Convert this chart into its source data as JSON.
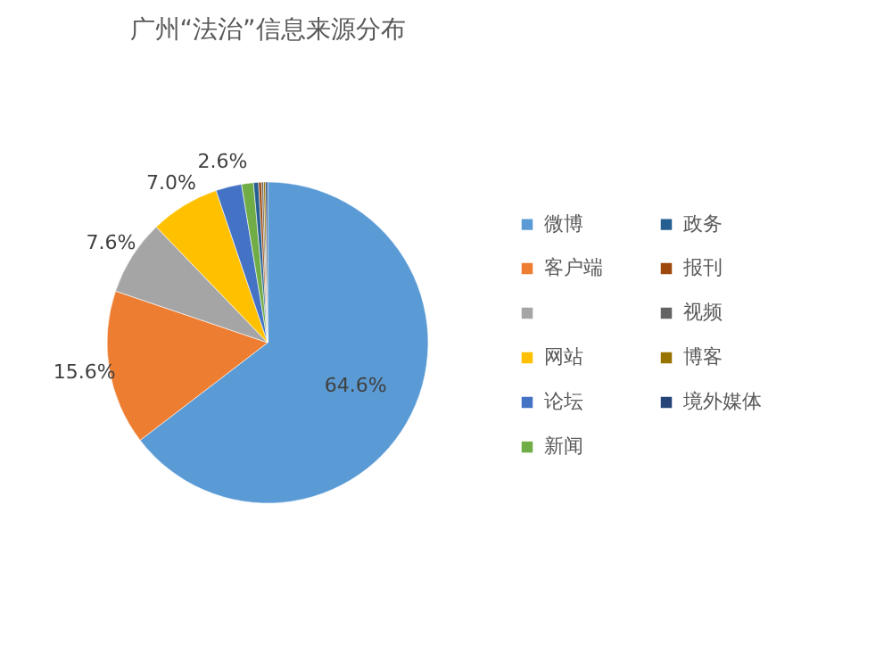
{
  "chart_data": {
    "type": "pie",
    "title": "广州“法治”信息来源分布",
    "categories": [
      "微博",
      "客户端",
      null,
      "网站",
      "论坛",
      "新闻",
      "政务",
      "报刊",
      "视频",
      "博客",
      "境外媒体"
    ],
    "values": [
      64.6,
      15.6,
      7.6,
      7.0,
      2.6,
      1.2,
      0.5,
      0.3,
      0.2,
      0.2,
      0.2
    ],
    "value_labels": [
      "64.6%",
      "15.6%",
      "7.6%",
      "7.0%",
      "2.6%",
      null,
      null,
      null,
      null,
      null,
      null
    ],
    "colors": [
      "#5b9bd5",
      "#ed7d31",
      "#a5a5a5",
      "#ffc000",
      "#4472c4",
      "#70ad47",
      "#255e91",
      "#9e480e",
      "#636363",
      "#997300",
      "#264478"
    ],
    "legend": "right"
  }
}
